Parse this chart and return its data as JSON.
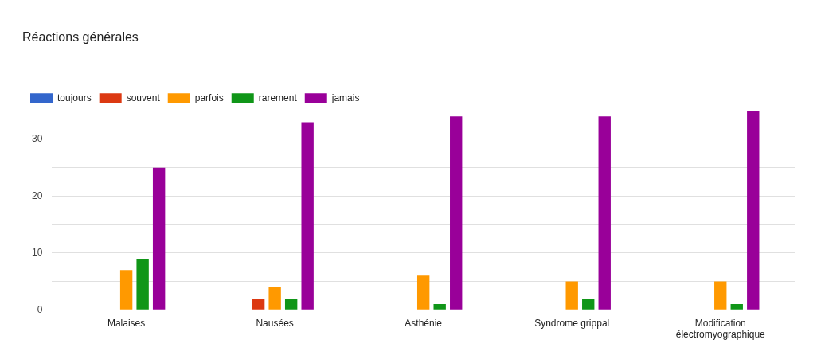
{
  "chart_data": {
    "type": "bar",
    "title": "Réactions générales",
    "categories": [
      "Malaises",
      "Nausées",
      "Asthénie",
      "Syndrome grippal",
      "Modification électromyographique"
    ],
    "series": [
      {
        "name": "toujours",
        "color": "#3366cc",
        "values": [
          0,
          0,
          0,
          0,
          0
        ]
      },
      {
        "name": "souvent",
        "color": "#dc3912",
        "values": [
          0,
          2,
          0,
          0,
          0
        ]
      },
      {
        "name": "parfois",
        "color": "#ff9900",
        "values": [
          7,
          4,
          6,
          5,
          5
        ]
      },
      {
        "name": "rarement",
        "color": "#109618",
        "values": [
          9,
          2,
          1,
          2,
          1
        ]
      },
      {
        "name": "jamais",
        "color": "#990099",
        "values": [
          25,
          33,
          34,
          34,
          35
        ]
      }
    ],
    "ylim": [
      0,
      35
    ],
    "yticks": [
      0,
      {
        "value": 5,
        "label": null
      },
      10,
      {
        "value": 15,
        "label": null
      },
      20,
      {
        "value": 25,
        "label": null
      },
      30,
      {
        "value": 35,
        "label": null
      }
    ],
    "grid": "y",
    "legend": "top left"
  }
}
